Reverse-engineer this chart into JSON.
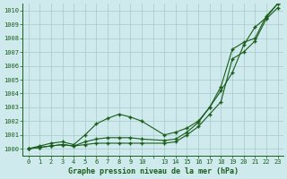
{
  "title": "Graphe pression niveau de la mer (hPa)",
  "bg_color": "#ceeaed",
  "grid_color": "#a8c8cc",
  "line_color": "#1a5c1a",
  "xlim": [
    -0.5,
    22.5
  ],
  "ylim": [
    999.5,
    1010.5
  ],
  "yticks": [
    1000,
    1001,
    1002,
    1003,
    1004,
    1005,
    1006,
    1007,
    1008,
    1009,
    1010
  ],
  "xtick_labels": [
    "0",
    "1",
    "2",
    "3",
    "4",
    "5",
    "6",
    "7",
    "8",
    "9",
    "10",
    "",
    "13",
    "14",
    "15",
    "16",
    "17",
    "18",
    "19",
    "20",
    "21",
    "22",
    "23"
  ],
  "xtick_positions": [
    0,
    1,
    2,
    3,
    4,
    5,
    6,
    7,
    8,
    9,
    10,
    11,
    12,
    13,
    14,
    15,
    16,
    17,
    18,
    19,
    20,
    21,
    22
  ],
  "num_xgrid": 23,
  "series1_x": [
    0,
    1,
    2,
    3,
    4,
    5,
    6,
    7,
    8,
    9,
    10,
    12,
    13,
    14,
    15,
    16,
    17,
    18,
    19,
    20,
    21,
    22
  ],
  "series1_y": [
    1000.0,
    1000.1,
    1000.2,
    1000.3,
    1000.2,
    1000.3,
    1000.4,
    1000.4,
    1000.4,
    1000.4,
    1000.4,
    1000.4,
    1000.5,
    1001.0,
    1001.6,
    1002.5,
    1003.4,
    1006.5,
    1007.0,
    1007.8,
    1009.4,
    1010.2
  ],
  "series2_x": [
    0,
    1,
    2,
    3,
    4,
    5,
    6,
    7,
    8,
    9,
    10,
    12,
    13,
    14,
    15,
    16,
    17,
    18,
    19,
    20,
    21,
    22
  ],
  "series2_y": [
    1000.0,
    1000.1,
    1000.2,
    1000.3,
    1000.2,
    1000.5,
    1000.7,
    1000.8,
    1000.8,
    1000.8,
    1000.7,
    1000.6,
    1000.7,
    1001.2,
    1001.9,
    1003.0,
    1004.5,
    1007.2,
    1007.7,
    1008.0,
    1009.6,
    1010.5
  ],
  "series3_x": [
    0,
    1,
    2,
    3,
    4,
    5,
    6,
    7,
    8,
    9,
    10,
    12,
    13,
    14,
    15,
    16,
    17,
    18,
    19,
    20,
    21,
    22
  ],
  "series3_y": [
    1000.0,
    1000.2,
    1000.4,
    1000.5,
    1000.3,
    1001.0,
    1001.8,
    1002.2,
    1002.5,
    1002.3,
    1002.0,
    1001.0,
    1001.2,
    1001.5,
    1002.0,
    1003.0,
    1004.2,
    1005.5,
    1007.5,
    1008.8,
    1009.5,
    1010.5
  ]
}
